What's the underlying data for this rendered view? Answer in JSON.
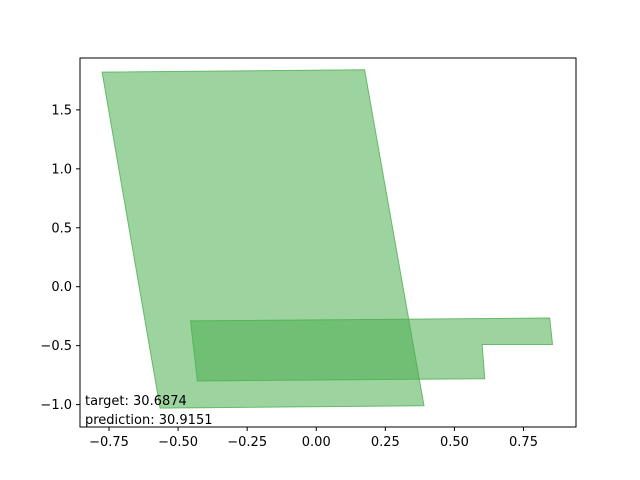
{
  "chart_data": {
    "type": "area",
    "title": "",
    "xlabel": "",
    "ylabel": "",
    "xlim": [
      -0.855,
      0.94
    ],
    "ylim": [
      -1.19,
      1.94
    ],
    "grid": false,
    "x_ticks": [
      -0.75,
      -0.5,
      -0.25,
      0.0,
      0.25,
      0.5,
      0.75
    ],
    "y_ticks": [
      -1.0,
      -0.5,
      0.0,
      0.5,
      1.0,
      1.5
    ],
    "fill_color": "#4caf50",
    "polygons": [
      {
        "points": [
          [
            -0.775,
            1.82
          ],
          [
            0.175,
            1.84
          ],
          [
            0.39,
            -1.01
          ],
          [
            -0.565,
            -1.03
          ]
        ]
      },
      {
        "points": [
          [
            -0.455,
            -0.29
          ],
          [
            0.845,
            -0.265
          ],
          [
            0.855,
            -0.49
          ],
          [
            0.6,
            -0.49
          ],
          [
            0.61,
            -0.78
          ],
          [
            -0.43,
            -0.8
          ]
        ]
      }
    ],
    "annotations": {
      "target": "target: 30.6874",
      "prediction": "prediction: 30.9151"
    }
  }
}
